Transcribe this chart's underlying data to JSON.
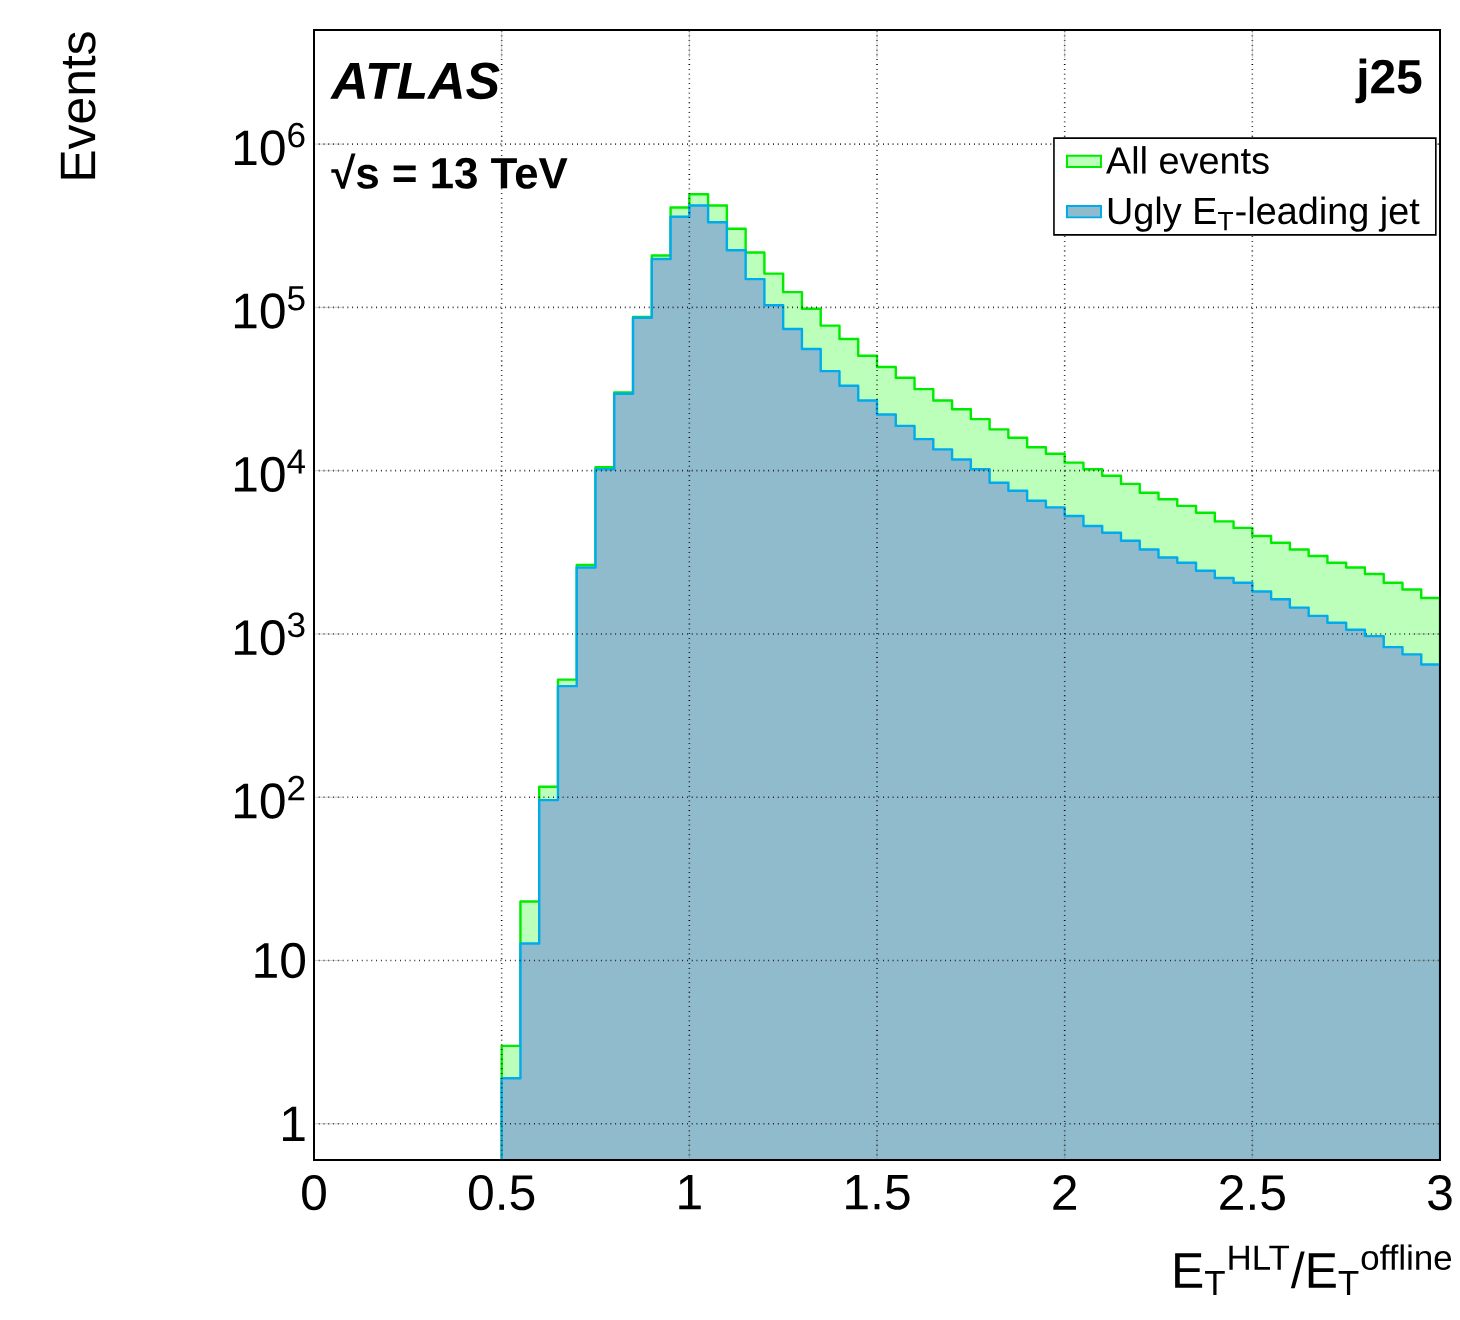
{
  "chart_data": {
    "type": "histogram",
    "xlabel": "E$_{T}$$^{HLT}$/E$_{T}$$^{offline}$",
    "ylabel": "Events",
    "annotations": [
      "ATLAS",
      "√s = 13 TeV",
      "j25"
    ],
    "bins": [
      0.5,
      0.55,
      0.6,
      0.65,
      0.7,
      0.75,
      0.8,
      0.85,
      0.9,
      0.95,
      1.0,
      1.05,
      1.1,
      1.15,
      1.2,
      1.25,
      1.3,
      1.35,
      1.4,
      1.45,
      1.5,
      1.55,
      1.6,
      1.65,
      1.7,
      1.75,
      1.8,
      1.85,
      1.9,
      1.95,
      2.0,
      2.05,
      2.1,
      2.15,
      2.2,
      2.25,
      2.3,
      2.35,
      2.4,
      2.45,
      2.5,
      2.55,
      2.6,
      2.65,
      2.7,
      2.75,
      2.8,
      2.85,
      2.9,
      2.95,
      3.0
    ],
    "series": [
      {
        "name": "All events",
        "color": "#bbffbb",
        "values": [
          3.0,
          23,
          116,
          525,
          2650,
          10500,
          30100,
          87300,
          208000,
          409000,
          493000,
          421000,
          303000,
          217000,
          161000,
          124000,
          98000,
          77300,
          64000,
          50600,
          43100,
          37100,
          31600,
          26900,
          23800,
          20700,
          17900,
          15900,
          13900,
          12700,
          11200,
          10200,
          9300,
          8300,
          7330,
          6680,
          6090,
          5530,
          4890,
          4460,
          3980,
          3620,
          3290,
          3000,
          2730,
          2550,
          2330,
          2060,
          1870,
          1660
        ]
      },
      {
        "name": "Ugly E$_{T}$-leading jet",
        "color": "#8fbbcc",
        "values": [
          1.9,
          12.7,
          96,
          479,
          2550,
          10200,
          29600,
          86500,
          198000,
          359000,
          421000,
          332000,
          224000,
          149000,
          103000,
          73800,
          55600,
          40700,
          33100,
          26900,
          22100,
          18800,
          15600,
          13500,
          11700,
          10200,
          8440,
          7530,
          6540,
          5960,
          5280,
          4580,
          4170,
          3720,
          3290,
          2940,
          2730,
          2440,
          2200,
          2060,
          1820,
          1630,
          1450,
          1290,
          1170,
          1060,
          970,
          830,
          750,
          650
        ]
      }
    ],
    "xlim": [
      0,
      3
    ],
    "ylim": [
      0.6,
      5000000
    ],
    "xticks": [
      0,
      0.5,
      1,
      1.5,
      2,
      2.5,
      3
    ],
    "yticks": [
      1,
      10,
      {
        "value": 100,
        "label": "10$^{2}$"
      },
      {
        "value": 1000,
        "label": "10$^{3}$"
      },
      {
        "value": 10000,
        "label": "10$^{4}$"
      },
      {
        "value": 100000,
        "label": "10$^{5}$"
      },
      {
        "value": 1000000,
        "label": "10$^{6}$"
      }
    ],
    "log": "y",
    "grid": true,
    "legend": "top right"
  }
}
